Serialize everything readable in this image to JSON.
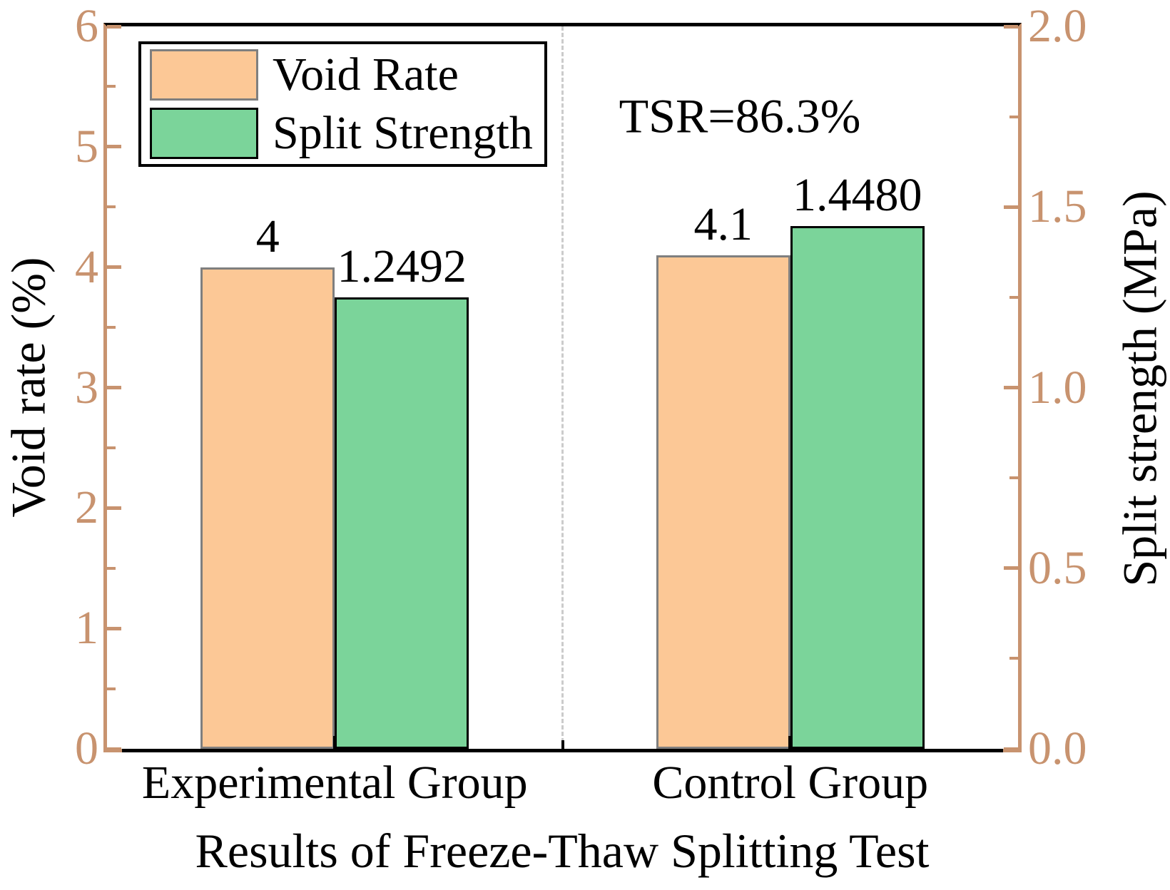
{
  "chart_data": {
    "type": "bar",
    "categories": [
      "Experimental Group",
      "Control Group"
    ],
    "series": [
      {
        "name": "Void Rate",
        "axis": "left",
        "values": [
          4,
          4.1
        ],
        "labels": [
          "4",
          "4.1"
        ],
        "color": "#FCC896",
        "border_color": "#7F7F7F"
      },
      {
        "name": "Split Strength",
        "axis": "right",
        "values": [
          1.2492,
          1.448
        ],
        "labels": [
          "1.2492",
          "1.4480"
        ],
        "color": "#7BD49A",
        "border_color": "#000000"
      }
    ],
    "annotation": "TSR=86.3%",
    "xlabel": "Results of Freeze-Thaw Splitting Test",
    "ylabel_left": "Void rate (%)",
    "ylabel_right": "Split strength (MPa)",
    "y_left": {
      "min": 0,
      "max": 6,
      "major_tick_labels": [
        "0",
        "1",
        "2",
        "3",
        "4",
        "5",
        "6"
      ],
      "major_tick_values": [
        0,
        1,
        2,
        3,
        4,
        5,
        6
      ],
      "minor_tick_values": [
        0.5,
        1.5,
        2.5,
        3.5,
        4.5,
        5.5
      ]
    },
    "y_right": {
      "min": 0,
      "max": 2,
      "major_tick_labels": [
        "0.0",
        "0.5",
        "1.0",
        "1.5",
        "2.0"
      ],
      "major_tick_values": [
        0,
        0.5,
        1,
        1.5,
        2
      ],
      "minor_tick_values": [
        0.25,
        0.75,
        1.25,
        1.75
      ]
    },
    "legend_position": "upper-left",
    "grid": false,
    "colors": {
      "axis_tan": "#C8936F",
      "dashed_divider": "#CBCBCB",
      "text": "#000000",
      "background": "#FFFFFF"
    }
  }
}
